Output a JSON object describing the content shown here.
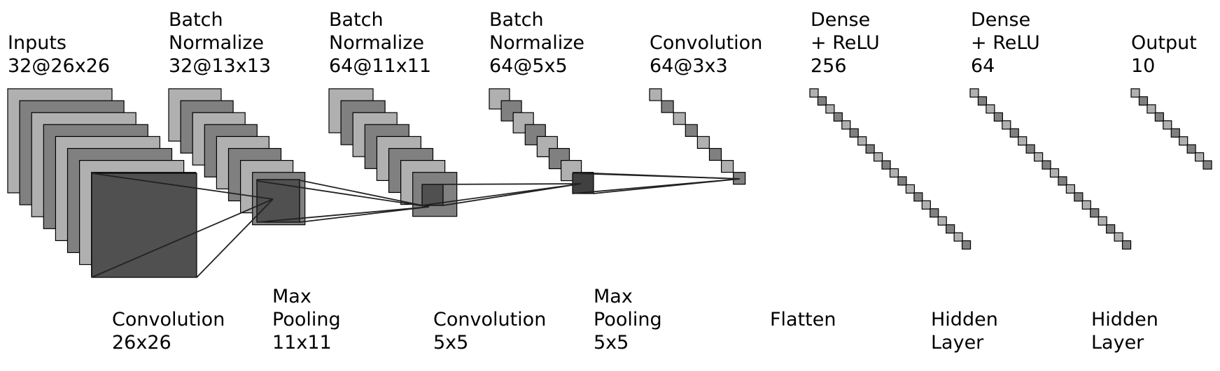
{
  "colors": {
    "light": "#b0b0b0",
    "mid": "#808080",
    "dark": "#505050",
    "darker": "#404040",
    "stroke": "#000000",
    "connector": "#222222"
  },
  "layers": [
    {
      "title": "Inputs",
      "shape": "32@26x26",
      "lines": [
        "Inputs",
        "32@26x26"
      ]
    },
    {
      "title": "Batch Normalize",
      "shape": "32@13x13",
      "lines": [
        "Batch",
        "Normalize",
        "32@13x13"
      ]
    },
    {
      "title": "Batch Normalize",
      "shape": "64@11x11",
      "lines": [
        "Batch",
        "Normalize",
        "64@11x11"
      ]
    },
    {
      "title": "Batch Normalize",
      "shape": "64@5x5",
      "lines": [
        "Batch",
        "Normalize",
        "64@5x5"
      ]
    },
    {
      "title": "Convolution",
      "shape": "64@3x3",
      "lines": [
        "Convolution",
        "64@3x3"
      ]
    },
    {
      "title": "Dense + ReLU",
      "shape": "256",
      "lines": [
        "Dense",
        "+ ReLU",
        "256"
      ]
    },
    {
      "title": "Dense + ReLU",
      "shape": "64",
      "lines": [
        "Dense",
        "+ ReLU",
        "64"
      ]
    },
    {
      "title": "Output",
      "shape": "10",
      "lines": [
        "Output",
        "10"
      ]
    }
  ],
  "operations": [
    {
      "lines": [
        "Convolution",
        "26x26"
      ]
    },
    {
      "lines": [
        "Max",
        "Pooling",
        "11x11"
      ]
    },
    {
      "lines": [
        "Convolution",
        "5x5"
      ]
    },
    {
      "lines": [
        "Max",
        "Pooling",
        "5x5"
      ]
    },
    {
      "lines": [
        "Flatten"
      ]
    },
    {
      "lines": [
        "Hidden",
        "Layer"
      ]
    },
    {
      "lines": [
        "Hidden",
        "Layer"
      ]
    }
  ]
}
